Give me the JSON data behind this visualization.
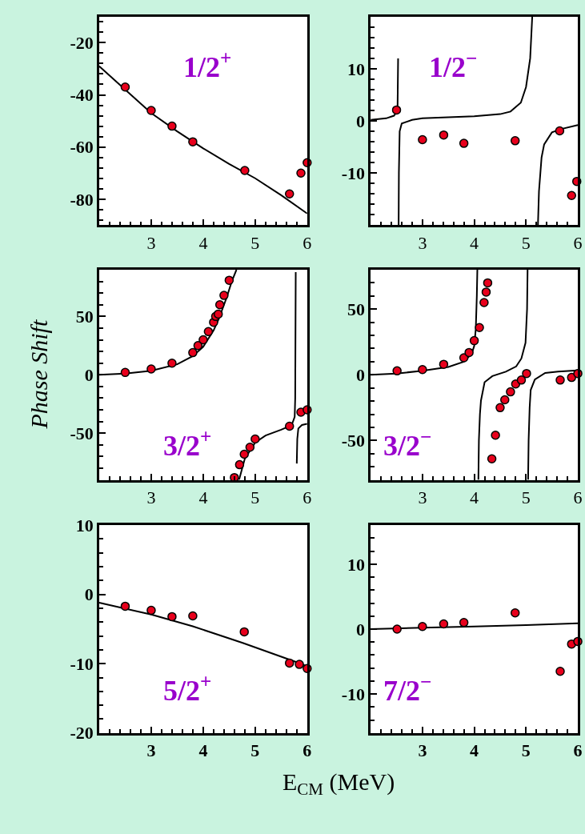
{
  "chart_data": [
    {
      "type": "scatter",
      "xlim": [
        2,
        6
      ],
      "ylim": [
        -90,
        -10
      ],
      "xticks": [
        3,
        4,
        5,
        6
      ],
      "yticks": [
        -20,
        -40,
        -60,
        -80
      ],
      "grid": false,
      "annotations": [
        "1/2$^{+}$"
      ],
      "series": [
        {
          "type": "line",
          "color": "#000000",
          "marker": "none",
          "line_style": "solid",
          "x": [
            2,
            2.5,
            3,
            3.5,
            4,
            4.5,
            5,
            5.5,
            6
          ],
          "values": [
            -29,
            -38,
            -47,
            -54,
            -60.5,
            -66.5,
            -72,
            -78.5,
            -85.5
          ]
        },
        {
          "color": "#e8001c",
          "marker": "circle",
          "x": [
            2.5,
            3.0,
            3.4,
            3.8,
            4.8,
            5.66,
            5.88,
            6.0
          ],
          "values": [
            -37,
            -46,
            -52,
            -58,
            -69,
            -78,
            -70,
            -66
          ]
        }
      ]
    },
    {
      "type": "scatter",
      "xlim": [
        2,
        6
      ],
      "ylim": [
        -20,
        20
      ],
      "xticks": [
        3,
        4,
        5,
        6
      ],
      "yticks": [
        10,
        0,
        -10
      ],
      "grid": false,
      "annotations": [
        "1/2$^{−}$"
      ],
      "series": [
        {
          "type": "line",
          "color": "#000000",
          "marker": "none",
          "line_style": "solid",
          "x": [
            2,
            2.3,
            2.45,
            2.5,
            2.52,
            2.53
          ],
          "values": [
            0.2,
            0.5,
            1,
            1.7,
            3,
            12
          ]
        },
        {
          "type": "line",
          "color": "#000000",
          "marker": "none",
          "line_style": "solid",
          "x": [
            2.54,
            2.545,
            2.56,
            2.6,
            2.8,
            3,
            3.5,
            4,
            4.5,
            4.7,
            4.9,
            5.0,
            5.08,
            5.12
          ],
          "values": [
            -20,
            -10,
            -2,
            -0.5,
            0.2,
            0.5,
            0.7,
            0.9,
            1.3,
            1.8,
            3.5,
            6.5,
            12,
            20
          ]
        },
        {
          "type": "line",
          "color": "#000000",
          "marker": "none",
          "line_style": "solid",
          "x": [
            5.23,
            5.25,
            5.3,
            5.35,
            5.5,
            5.7,
            6.0
          ],
          "values": [
            -20,
            -13.5,
            -7,
            -4.5,
            -2.2,
            -1.5,
            -0.8
          ]
        },
        {
          "color": "#e8001c",
          "marker": "circle",
          "x": [
            2.5,
            3.0,
            3.41,
            3.8,
            4.79,
            5.65,
            5.88,
            5.98
          ],
          "values": [
            2.1,
            -3.6,
            -2.7,
            -4.3,
            -3.8,
            -1.9,
            -14.3,
            -11.6
          ]
        }
      ]
    },
    {
      "type": "scatter",
      "xlim": [
        2,
        6
      ],
      "ylim": [
        -90,
        90
      ],
      "xticks": [
        3,
        4,
        5,
        6
      ],
      "yticks": [
        50,
        0,
        -50
      ],
      "grid": false,
      "ylabel": "Phase Shift",
      "annotations": [
        "3/2$^{+}$"
      ],
      "series": [
        {
          "type": "line",
          "color": "#000000",
          "marker": "none",
          "line_style": "solid",
          "x": [
            2,
            2.5,
            3,
            3.5,
            3.8,
            4,
            4.2,
            4.3,
            4.45,
            4.55,
            4.64
          ],
          "values": [
            0,
            1,
            3.5,
            9,
            16,
            24,
            38,
            48,
            66,
            80,
            90
          ]
        },
        {
          "type": "line",
          "color": "#000000",
          "marker": "none",
          "line_style": "solid",
          "x": [
            4.69,
            4.8,
            5.0,
            5.2,
            5.5,
            5.66,
            5.72,
            5.76,
            5.77,
            5.78
          ],
          "values": [
            -90,
            -72,
            -58,
            -52,
            -47,
            -44,
            -41,
            -36,
            -20,
            88
          ]
        },
        {
          "type": "line",
          "color": "#000000",
          "marker": "none",
          "line_style": "solid",
          "x": [
            5.8,
            5.81,
            5.83,
            5.9,
            6.0
          ],
          "values": [
            -76,
            -55,
            -46,
            -43,
            -42
          ]
        },
        {
          "color": "#e8001c",
          "marker": "circle",
          "x": [
            2.5,
            3.0,
            3.4,
            3.8,
            3.9,
            4.0,
            4.1,
            4.2,
            4.24,
            4.29,
            4.32,
            4.4,
            4.5,
            4.6,
            4.7,
            4.79,
            4.9,
            5.0,
            5.66,
            5.88,
            6.0
          ],
          "values": [
            2,
            5,
            10,
            19,
            25,
            30,
            37,
            45,
            50,
            52,
            60,
            68,
            81,
            -88,
            -77,
            -68,
            -62,
            -55,
            -44,
            -32,
            -30
          ]
        }
      ]
    },
    {
      "type": "scatter",
      "xlim": [
        2,
        6
      ],
      "ylim": [
        -80,
        80
      ],
      "xticks": [
        3,
        4,
        5,
        6
      ],
      "yticks": [
        50,
        0,
        -50
      ],
      "grid": false,
      "annotations": [
        "3/2$^{−}$"
      ],
      "series": [
        {
          "type": "line",
          "color": "#000000",
          "marker": "none",
          "line_style": "solid",
          "x": [
            2,
            2.5,
            3,
            3.5,
            3.8,
            3.95,
            4.0,
            4.03,
            4.05,
            4.06
          ],
          "values": [
            0,
            1,
            3,
            6,
            10,
            16,
            22,
            35,
            60,
            80
          ]
        },
        {
          "type": "line",
          "color": "#000000",
          "marker": "none",
          "line_style": "solid",
          "x": [
            4.08,
            4.09,
            4.11,
            4.13,
            4.2,
            4.35,
            4.61,
            4.81,
            4.91,
            4.99,
            5.02,
            5.03
          ],
          "values": [
            -80,
            -50,
            -30,
            -19.6,
            -5.6,
            -1,
            2.4,
            6.4,
            12.4,
            24.4,
            50,
            80
          ]
        },
        {
          "type": "line",
          "color": "#000000",
          "marker": "none",
          "line_style": "solid",
          "x": [
            5.04,
            5.05,
            5.07,
            5.09,
            5.17,
            5.37,
            5.62,
            6.0
          ],
          "values": [
            -80,
            -50,
            -25,
            -11.6,
            -3.6,
            1.4,
            2.4,
            3.4
          ]
        },
        {
          "color": "#e8001c",
          "marker": "circle",
          "x": [
            2.51,
            3.0,
            3.41,
            3.8,
            3.9,
            4.0,
            4.1,
            4.19,
            4.23,
            4.26,
            4.34,
            4.41,
            4.5,
            4.59,
            4.7,
            4.8,
            4.91,
            5.01,
            5.66,
            5.88,
            6.0
          ],
          "values": [
            3,
            4,
            8,
            13,
            17,
            26,
            36,
            55,
            63,
            70,
            -64,
            -46,
            -25,
            -19,
            -13,
            -7,
            -4,
            1,
            -4,
            -2,
            1
          ]
        }
      ]
    },
    {
      "type": "scatter",
      "xlim": [
        2,
        6
      ],
      "ylim": [
        -20,
        10
      ],
      "xticks": [
        3,
        4,
        5,
        6
      ],
      "yticks": [
        10,
        0,
        -10,
        -20
      ],
      "grid": false,
      "xlabel": "E$_{CM}$ (MeV)",
      "annotations": [
        "5/2$^{+}$"
      ],
      "series": [
        {
          "type": "line",
          "color": "#000000",
          "marker": "none",
          "line_style": "solid",
          "x": [
            2,
            3,
            3.8,
            4.76,
            5.88,
            6.0
          ],
          "values": [
            -1.2,
            -2.9,
            -4.6,
            -7.0,
            -10,
            -10.4
          ]
        },
        {
          "color": "#e8001c",
          "marker": "circle",
          "x": [
            2.5,
            3.0,
            3.4,
            3.8,
            4.79,
            5.66,
            5.85,
            6.0
          ],
          "values": [
            -1.7,
            -2.3,
            -3.2,
            -3.1,
            -5.4,
            -9.9,
            -10.1,
            -10.7
          ]
        }
      ]
    },
    {
      "type": "scatter",
      "xlim": [
        2,
        6
      ],
      "ylim": [
        -16,
        16
      ],
      "xticks": [
        3,
        4,
        5,
        6
      ],
      "yticks": [
        10,
        0,
        -10
      ],
      "grid": false,
      "annotations": [
        "7/2$^{−}$"
      ],
      "series": [
        {
          "type": "line",
          "color": "#000000",
          "marker": "none",
          "line_style": "solid",
          "x": [
            2,
            3,
            4,
            5,
            6
          ],
          "values": [
            0,
            0.2,
            0.4,
            0.6,
            0.9
          ]
        },
        {
          "color": "#e8001c",
          "marker": "circle",
          "x": [
            2.51,
            3.0,
            3.41,
            3.8,
            4.79,
            5.66,
            5.88,
            6.0
          ],
          "values": [
            0,
            0.4,
            0.8,
            1.0,
            2.5,
            -6.5,
            -2.3,
            -1.9
          ]
        }
      ]
    }
  ]
}
